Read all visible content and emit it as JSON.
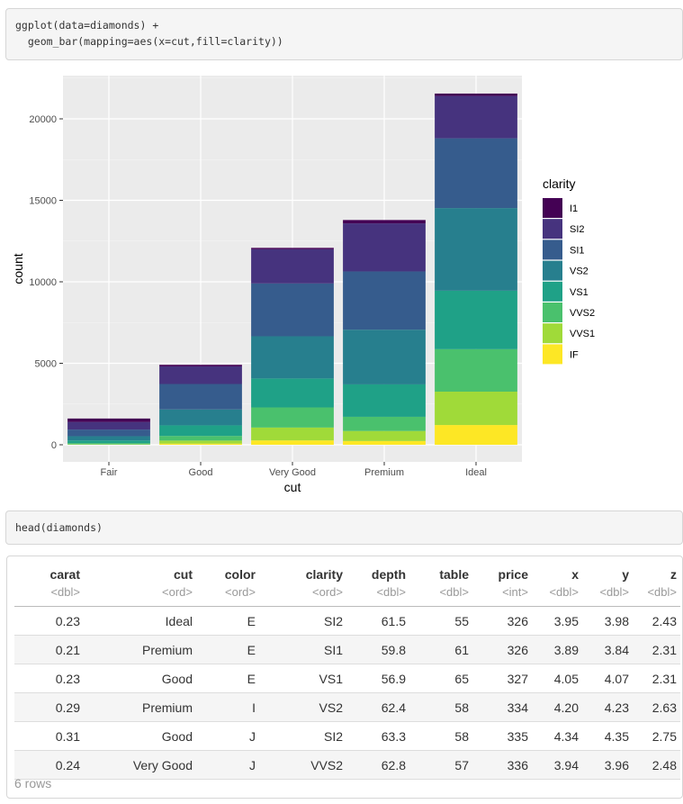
{
  "code_block_1": {
    "lines": [
      "ggplot(data=diamonds) +",
      "  geom_bar(mapping=aes(x=cut,fill=clarity))"
    ]
  },
  "code_block_2": {
    "lines": [
      "head(diamonds)"
    ]
  },
  "chart_data": {
    "type": "bar",
    "stacked": true,
    "xlabel": "cut",
    "ylabel": "count",
    "categories": [
      "Fair",
      "Good",
      "Very Good",
      "Premium",
      "Ideal"
    ],
    "yticks": [
      0,
      5000,
      10000,
      15000,
      20000
    ],
    "ytick_labels": [
      "0",
      "5000",
      "10000",
      "15000",
      "20000"
    ],
    "ylim": [
      0,
      22750
    ],
    "grid": true,
    "legend_title": "clarity",
    "legend_placement": "right",
    "series": [
      {
        "name": "I1",
        "color": "#440154",
        "values": [
          210,
          96,
          84,
          205,
          146
        ]
      },
      {
        "name": "SI2",
        "color": "#46337e",
        "values": [
          466,
          1081,
          2100,
          2949,
          2598
        ]
      },
      {
        "name": "SI1",
        "color": "#365c8d",
        "values": [
          408,
          1560,
          3240,
          3575,
          4282
        ]
      },
      {
        "name": "VS2",
        "color": "#277f8e",
        "values": [
          261,
          978,
          2591,
          3357,
          5071
        ]
      },
      {
        "name": "VS1",
        "color": "#1fa187",
        "values": [
          170,
          648,
          1775,
          1989,
          3589
        ]
      },
      {
        "name": "VVS2",
        "color": "#4ac16d",
        "values": [
          69,
          286,
          1235,
          870,
          2606
        ]
      },
      {
        "name": "VVS1",
        "color": "#a0da39",
        "values": [
          17,
          186,
          789,
          616,
          2047
        ]
      },
      {
        "name": "IF",
        "color": "#fde725",
        "values": [
          9,
          71,
          268,
          230,
          1212
        ]
      }
    ]
  },
  "table": {
    "columns": [
      {
        "name": "carat",
        "type": "<dbl>"
      },
      {
        "name": "cut",
        "type": "<ord>"
      },
      {
        "name": "color",
        "type": "<ord>"
      },
      {
        "name": "clarity",
        "type": "<ord>"
      },
      {
        "name": "depth",
        "type": "<dbl>"
      },
      {
        "name": "table",
        "type": "<dbl>"
      },
      {
        "name": "price",
        "type": "<int>"
      },
      {
        "name": "x",
        "type": "<dbl>"
      },
      {
        "name": "y",
        "type": "<dbl>"
      },
      {
        "name": "z",
        "type": "<dbl>"
      }
    ],
    "rows": [
      [
        "0.23",
        "Ideal",
        "E",
        "SI2",
        "61.5",
        "55",
        "326",
        "3.95",
        "3.98",
        "2.43"
      ],
      [
        "0.21",
        "Premium",
        "E",
        "SI1",
        "59.8",
        "61",
        "326",
        "3.89",
        "3.84",
        "2.31"
      ],
      [
        "0.23",
        "Good",
        "E",
        "VS1",
        "56.9",
        "65",
        "327",
        "4.05",
        "4.07",
        "2.31"
      ],
      [
        "0.29",
        "Premium",
        "I",
        "VS2",
        "62.4",
        "58",
        "334",
        "4.20",
        "4.23",
        "2.63"
      ],
      [
        "0.31",
        "Good",
        "J",
        "SI2",
        "63.3",
        "58",
        "335",
        "4.34",
        "4.35",
        "2.75"
      ],
      [
        "0.24",
        "Very Good",
        "J",
        "VVS2",
        "62.8",
        "57",
        "336",
        "3.94",
        "3.96",
        "2.48"
      ]
    ],
    "row_count_label": "6 rows"
  }
}
